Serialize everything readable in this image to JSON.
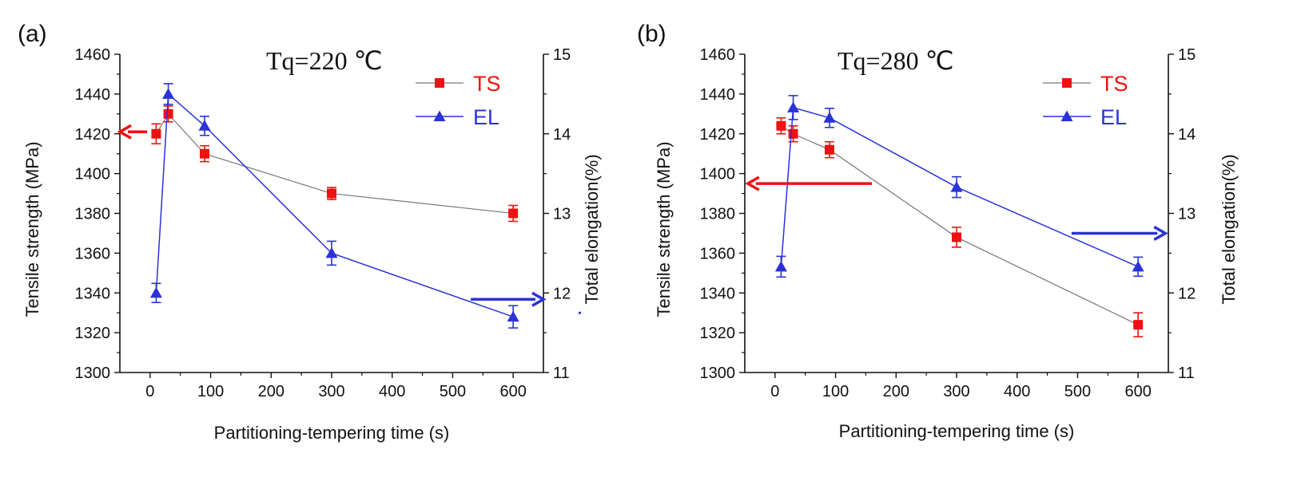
{
  "colors": {
    "ts": "#ee1111",
    "el": "#2a32d8",
    "ts_line": "#777777",
    "axis": "#111111"
  },
  "chart_data": [
    {
      "type": "line",
      "panel_label": "(a)",
      "annotation": "Tq=220  ℃",
      "xlabel": "Partitioning-tempering time   (s)",
      "ylabel": "Tensile strength (MPa)",
      "y2label": "Total elongation(%)",
      "xlim": [
        -50,
        650
      ],
      "ylim": [
        1300,
        1460
      ],
      "y2lim": [
        11,
        15
      ],
      "xticks": [
        0,
        100,
        200,
        300,
        400,
        500,
        600
      ],
      "yticks": [
        1300,
        1320,
        1340,
        1360,
        1380,
        1400,
        1420,
        1440,
        1460
      ],
      "y2ticks": [
        11,
        12,
        13,
        14,
        15
      ],
      "legend": [
        "TS",
        "EL"
      ],
      "series": [
        {
          "name": "TS",
          "axis": "left",
          "x": [
            10,
            30,
            90,
            300,
            600
          ],
          "y": [
            1420,
            1430,
            1410,
            1390,
            1380
          ],
          "err": [
            5,
            4,
            4,
            3,
            4
          ]
        },
        {
          "name": "EL",
          "axis": "right",
          "x": [
            10,
            30,
            90,
            300,
            600
          ],
          "y": [
            12.0,
            14.5,
            14.1,
            12.5,
            11.7
          ],
          "err": [
            0.12,
            0.13,
            0.12,
            0.15,
            0.14
          ]
        }
      ],
      "arrows": [
        {
          "series": "TS",
          "direction": "left",
          "from": [
            -5,
            1421
          ],
          "to": [
            -50,
            1421
          ]
        },
        {
          "series": "EL",
          "direction": "right",
          "from": [
            530,
            11.92
          ],
          "to": [
            650,
            11.92
          ]
        }
      ],
      "stray_dot": [
        {
          "x": 710,
          "y": 1330
        }
      ]
    },
    {
      "type": "line",
      "panel_label": "(b)",
      "annotation": "Tq=280  ℃",
      "xlabel": "Partitioning-tempering time   (s)",
      "ylabel": "Tensile strength (MPa)",
      "y2label": "Total elongation(%)",
      "xlim": [
        -50,
        650
      ],
      "ylim": [
        1300,
        1460
      ],
      "y2lim": [
        11,
        15
      ],
      "xticks": [
        0,
        100,
        200,
        300,
        400,
        500,
        600
      ],
      "yticks": [
        1300,
        1320,
        1340,
        1360,
        1380,
        1400,
        1420,
        1440,
        1460
      ],
      "y2ticks": [
        11,
        12,
        13,
        14,
        15
      ],
      "legend": [
        "TS",
        "EL"
      ],
      "series": [
        {
          "name": "TS",
          "axis": "left",
          "x": [
            10,
            30,
            90,
            300,
            600
          ],
          "y": [
            1424,
            1420,
            1412,
            1368,
            1324
          ],
          "err": [
            4,
            4,
            4,
            5,
            6
          ]
        },
        {
          "name": "EL",
          "axis": "right",
          "x": [
            10,
            30,
            90,
            300,
            600
          ],
          "y": [
            12.33,
            14.33,
            14.2,
            13.33,
            12.33
          ],
          "err": [
            0.13,
            0.15,
            0.12,
            0.13,
            0.12
          ]
        }
      ],
      "arrows": [
        {
          "series": "TS",
          "direction": "left",
          "from": [
            160,
            1395
          ],
          "to": [
            -45,
            1395
          ]
        },
        {
          "series": "EL",
          "direction": "right",
          "from": [
            490,
            12.75
          ],
          "to": [
            645,
            12.75
          ]
        }
      ],
      "stray_dot": []
    }
  ]
}
